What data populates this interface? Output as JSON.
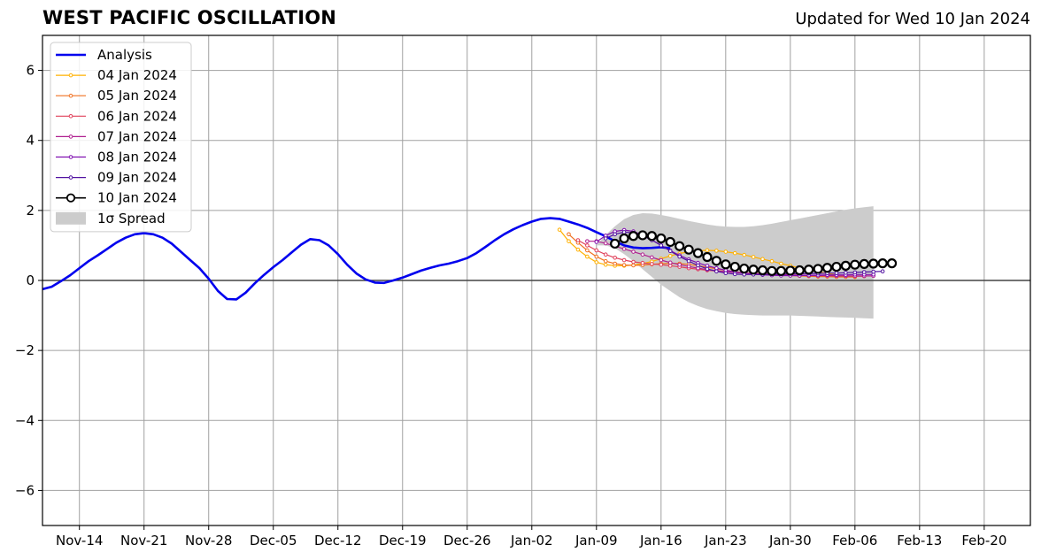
{
  "header": {
    "title": "WEST PACIFIC OSCILLATION",
    "updated": "Updated for Wed 10 Jan 2024"
  },
  "chart_data": {
    "type": "line",
    "title": "WEST PACIFIC OSCILLATION",
    "subtitle": "Updated for Wed 10 Jan 2024",
    "xlabel": "",
    "ylabel": "",
    "xlim": [
      "2023-11-10",
      "2024-02-25"
    ],
    "ylim": [
      -7,
      7
    ],
    "yticks": [
      -6,
      -4,
      -2,
      0,
      2,
      4,
      6
    ],
    "ytick_labels": [
      "−6",
      "−4",
      "−2",
      "0",
      "2",
      "4",
      "6"
    ],
    "xticks": [
      "2023-11-14",
      "2023-11-21",
      "2023-11-28",
      "2023-12-05",
      "2023-12-12",
      "2023-12-19",
      "2023-12-26",
      "2024-01-02",
      "2024-01-09",
      "2024-01-16",
      "2024-01-23",
      "2024-01-30",
      "2024-02-06",
      "2024-02-13",
      "2024-02-20"
    ],
    "xtick_labels": [
      "Nov-14",
      "Nov-21",
      "Nov-28",
      "Dec-05",
      "Dec-12",
      "Dec-19",
      "Dec-26",
      "Jan-02",
      "Jan-09",
      "Jan-16",
      "Jan-23",
      "Jan-30",
      "Feb-06",
      "Feb-13",
      "Feb-20"
    ],
    "grid": true,
    "legend_position": "top-left",
    "zero_line": true,
    "analysis": {
      "name": "Analysis",
      "color": "#0000ee",
      "start": "2023-11-10",
      "values": [
        -0.25,
        -0.18,
        -0.02,
        0.15,
        0.35,
        0.55,
        0.72,
        0.9,
        1.08,
        1.22,
        1.32,
        1.35,
        1.32,
        1.22,
        1.05,
        0.82,
        0.58,
        0.35,
        0.05,
        -0.3,
        -0.53,
        -0.54,
        -0.35,
        -0.08,
        0.16,
        0.38,
        0.58,
        0.8,
        1.02,
        1.18,
        1.15,
        1.0,
        0.75,
        0.45,
        0.2,
        0.03,
        -0.06,
        -0.07,
        0.0,
        0.08,
        0.18,
        0.28,
        0.36,
        0.43,
        0.48,
        0.55,
        0.64,
        0.78,
        0.96,
        1.15,
        1.32,
        1.46,
        1.58,
        1.68,
        1.76,
        1.78,
        1.76,
        1.68,
        1.6,
        1.5,
        1.38,
        1.26,
        1.12,
        1.0,
        0.94,
        0.92,
        0.93,
        0.95,
        0.92
      ]
    },
    "spread": {
      "name": "1σ Spread",
      "color": "#cccccc",
      "start": "2024-01-09",
      "upper": [
        1.0,
        1.3,
        1.55,
        1.75,
        1.87,
        1.92,
        1.91,
        1.87,
        1.82,
        1.76,
        1.7,
        1.65,
        1.6,
        1.56,
        1.54,
        1.53,
        1.53,
        1.55,
        1.58,
        1.62,
        1.67,
        1.72,
        1.77,
        1.82,
        1.87,
        1.92,
        1.97,
        2.02,
        2.06,
        2.09,
        2.12
      ],
      "lower": [
        1.0,
        1.0,
        0.92,
        0.75,
        0.55,
        0.32,
        0.1,
        -0.12,
        -0.3,
        -0.48,
        -0.62,
        -0.73,
        -0.82,
        -0.88,
        -0.93,
        -0.96,
        -0.98,
        -0.99,
        -1.0,
        -1.0,
        -1.0,
        -1.0,
        -1.01,
        -1.02,
        -1.03,
        -1.04,
        -1.05,
        -1.06,
        -1.07,
        -1.08,
        -1.09
      ]
    },
    "series": [
      {
        "name": "04 Jan 2024",
        "color": "#ffb000",
        "start": "2024-01-05",
        "values": [
          1.45,
          1.12,
          0.88,
          0.68,
          0.52,
          0.45,
          0.42,
          0.42,
          0.44,
          0.48,
          0.54,
          0.62,
          0.7,
          0.77,
          0.82,
          0.85,
          0.86,
          0.85,
          0.82,
          0.78,
          0.73,
          0.67,
          0.61,
          0.55,
          0.48,
          0.42,
          0.36,
          0.3,
          0.25,
          0.2,
          0.16,
          0.12,
          0.1
        ]
      },
      {
        "name": "05 Jan 2024",
        "color": "#f07020",
        "start": "2024-01-06",
        "values": [
          1.32,
          1.08,
          0.86,
          0.68,
          0.55,
          0.48,
          0.44,
          0.43,
          0.44,
          0.46,
          0.48,
          0.49,
          0.48,
          0.46,
          0.42,
          0.38,
          0.33,
          0.29,
          0.25,
          0.22,
          0.2,
          0.18,
          0.16,
          0.15,
          0.14,
          0.13,
          0.12,
          0.11,
          0.11,
          0.1,
          0.1,
          0.1
        ]
      },
      {
        "name": "06 Jan 2024",
        "color": "#e0405a",
        "start": "2024-01-07",
        "values": [
          1.15,
          1.0,
          0.86,
          0.74,
          0.65,
          0.58,
          0.53,
          0.5,
          0.47,
          0.45,
          0.42,
          0.39,
          0.35,
          0.32,
          0.29,
          0.27,
          0.25,
          0.23,
          0.21,
          0.2,
          0.19,
          0.18,
          0.17,
          0.16,
          0.15,
          0.15,
          0.14,
          0.14,
          0.13,
          0.13,
          0.12,
          0.12
        ]
      },
      {
        "name": "07 Jan 2024",
        "color": "#b02090",
        "start": "2024-01-08",
        "values": [
          1.12,
          1.12,
          1.06,
          0.98,
          0.9,
          0.82,
          0.74,
          0.66,
          0.58,
          0.51,
          0.45,
          0.4,
          0.35,
          0.31,
          0.28,
          0.25,
          0.23,
          0.21,
          0.19,
          0.18,
          0.17,
          0.16,
          0.15,
          0.15,
          0.14,
          0.14,
          0.14,
          0.13,
          0.13,
          0.13,
          0.13,
          0.13
        ]
      },
      {
        "name": "08 Jan 2024",
        "color": "#8010b0",
        "start": "2024-01-09",
        "values": [
          1.1,
          1.28,
          1.4,
          1.44,
          1.4,
          1.3,
          1.16,
          1.0,
          0.85,
          0.72,
          0.6,
          0.5,
          0.42,
          0.35,
          0.29,
          0.24,
          0.21,
          0.18,
          0.16,
          0.15,
          0.14,
          0.14,
          0.14,
          0.15,
          0.15,
          0.16,
          0.16,
          0.16,
          0.17,
          0.17,
          0.17
        ]
      },
      {
        "name": "09 Jan 2024",
        "color": "#5010a0",
        "start": "2024-01-10",
        "values": [
          1.2,
          1.32,
          1.38,
          1.36,
          1.28,
          1.15,
          1.0,
          0.84,
          0.68,
          0.55,
          0.43,
          0.33,
          0.26,
          0.21,
          0.18,
          0.17,
          0.17,
          0.17,
          0.18,
          0.18,
          0.19,
          0.19,
          0.2,
          0.2,
          0.21,
          0.21,
          0.22,
          0.23,
          0.24,
          0.25,
          0.26
        ]
      },
      {
        "name": "10 Jan 2024",
        "color": "#000000",
        "start": "2024-01-11",
        "values": [
          1.05,
          1.2,
          1.27,
          1.29,
          1.27,
          1.2,
          1.1,
          0.98,
          0.88,
          0.78,
          0.67,
          0.56,
          0.46,
          0.39,
          0.34,
          0.31,
          0.29,
          0.27,
          0.27,
          0.28,
          0.29,
          0.31,
          0.33,
          0.36,
          0.39,
          0.42,
          0.45,
          0.47,
          0.48,
          0.49,
          0.49
        ]
      }
    ]
  }
}
